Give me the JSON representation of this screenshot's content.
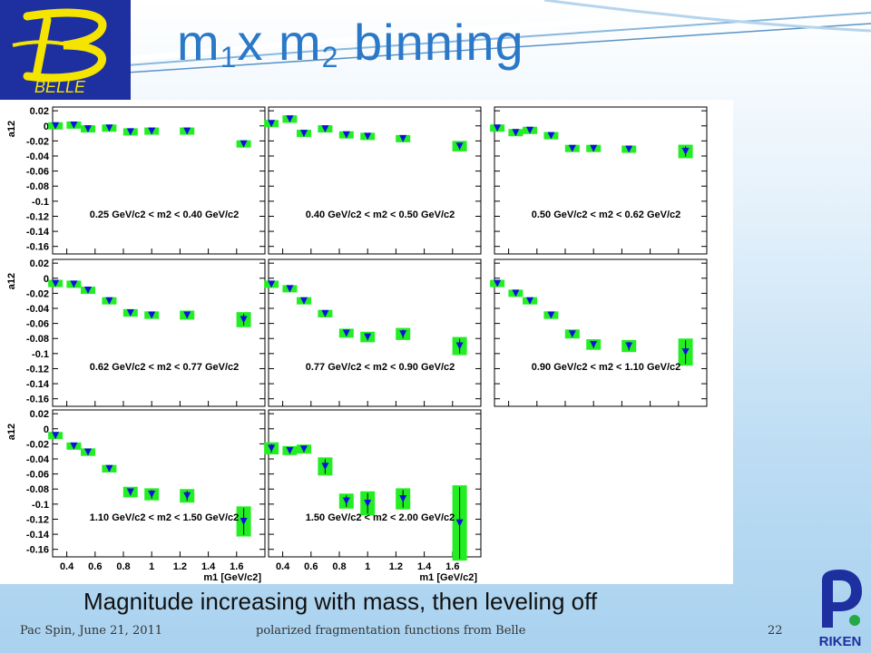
{
  "slide": {
    "title_main": "m",
    "title_sub1": "1",
    "title_mid": "x m",
    "title_sub2": "2",
    "title_end": " binning",
    "caption": "Magnitude increasing with mass, then leveling off",
    "footer_left": "Pac Spin, June 21, 2011",
    "footer_center": "polarized fragmentation functions from Belle",
    "footer_page": "22",
    "logo_text": "BELLE",
    "riken_text": "RIKEN",
    "accent_color": "#2a78c8"
  },
  "chart_data": {
    "type": "scatter",
    "ylabel": "a12",
    "xlabel": "m1 [GeV/c2]",
    "xlim": [
      0.3,
      1.8
    ],
    "ylim": [
      -0.17,
      0.025
    ],
    "y_ticks": [
      "0.02",
      "0",
      "-0.02",
      "-0.04",
      "-0.06",
      "-0.08",
      "-0.1",
      "-0.12",
      "-0.14",
      "-0.16"
    ],
    "x_ticks": [
      "0.4",
      "0.6",
      "0.8",
      "1",
      "1.2",
      "1.4",
      "1.6"
    ],
    "marker_color": "#1010dd",
    "band_color": "#22ee22",
    "panels": [
      {
        "label": "0.25 GeV/c2 < m2 < 0.40 GeV/c2",
        "points": [
          {
            "x": 0.32,
            "y": 0,
            "e": 0.003
          },
          {
            "x": 0.45,
            "y": 0.001,
            "e": 0.004
          },
          {
            "x": 0.55,
            "y": -0.004,
            "e": 0.003
          },
          {
            "x": 0.7,
            "y": -0.003,
            "e": 0.003
          },
          {
            "x": 0.85,
            "y": -0.008,
            "e": 0.003
          },
          {
            "x": 1.0,
            "y": -0.007,
            "e": 0.003
          },
          {
            "x": 1.25,
            "y": -0.007,
            "e": 0.003
          },
          {
            "x": 1.65,
            "y": -0.024,
            "e": 0.004
          }
        ]
      },
      {
        "label": "0.40 GeV/c2 < m2 < 0.50 GeV/c2",
        "points": [
          {
            "x": 0.32,
            "y": 0.003,
            "e": 0.004
          },
          {
            "x": 0.45,
            "y": 0.009,
            "e": 0.005
          },
          {
            "x": 0.55,
            "y": -0.01,
            "e": 0.004
          },
          {
            "x": 0.7,
            "y": -0.004,
            "e": 0.003
          },
          {
            "x": 0.85,
            "y": -0.012,
            "e": 0.003
          },
          {
            "x": 1.0,
            "y": -0.014,
            "e": 0.003
          },
          {
            "x": 1.25,
            "y": -0.017,
            "e": 0.003
          },
          {
            "x": 1.65,
            "y": -0.027,
            "e": 0.007
          }
        ]
      },
      {
        "label": "0.50 GeV/c2 < m2 < 0.62 GeV/c2",
        "points": [
          {
            "x": 0.32,
            "y": -0.003,
            "e": 0.003
          },
          {
            "x": 0.45,
            "y": -0.009,
            "e": 0.004
          },
          {
            "x": 0.55,
            "y": -0.006,
            "e": 0.003
          },
          {
            "x": 0.7,
            "y": -0.013,
            "e": 0.003
          },
          {
            "x": 0.85,
            "y": -0.03,
            "e": 0.004
          },
          {
            "x": 1.0,
            "y": -0.03,
            "e": 0.004
          },
          {
            "x": 1.25,
            "y": -0.031,
            "e": 0.004
          },
          {
            "x": 1.65,
            "y": -0.034,
            "e": 0.009
          }
        ]
      },
      {
        "label": "0.62 GeV/c2 < m2 < 0.77 GeV/c2",
        "points": [
          {
            "x": 0.32,
            "y": -0.007,
            "e": 0.003
          },
          {
            "x": 0.45,
            "y": -0.008,
            "e": 0.003
          },
          {
            "x": 0.55,
            "y": -0.016,
            "e": 0.003
          },
          {
            "x": 0.7,
            "y": -0.03,
            "e": 0.004
          },
          {
            "x": 0.85,
            "y": -0.046,
            "e": 0.005
          },
          {
            "x": 1.0,
            "y": -0.049,
            "e": 0.005
          },
          {
            "x": 1.25,
            "y": -0.049,
            "e": 0.006
          },
          {
            "x": 1.65,
            "y": -0.055,
            "e": 0.01
          }
        ]
      },
      {
        "label": "0.77 GeV/c2 < m2 < 0.90 GeV/c2",
        "points": [
          {
            "x": 0.32,
            "y": -0.008,
            "e": 0.004
          },
          {
            "x": 0.45,
            "y": -0.014,
            "e": 0.004
          },
          {
            "x": 0.55,
            "y": -0.03,
            "e": 0.004
          },
          {
            "x": 0.7,
            "y": -0.047,
            "e": 0.005
          },
          {
            "x": 0.85,
            "y": -0.073,
            "e": 0.006
          },
          {
            "x": 1.0,
            "y": -0.078,
            "e": 0.007
          },
          {
            "x": 1.25,
            "y": -0.074,
            "e": 0.008
          },
          {
            "x": 1.65,
            "y": -0.09,
            "e": 0.012
          }
        ]
      },
      {
        "label": "0.90 GeV/c2 < m2 < 1.10 GeV/c2",
        "points": [
          {
            "x": 0.32,
            "y": -0.007,
            "e": 0.004
          },
          {
            "x": 0.45,
            "y": -0.02,
            "e": 0.004
          },
          {
            "x": 0.55,
            "y": -0.03,
            "e": 0.004
          },
          {
            "x": 0.7,
            "y": -0.049,
            "e": 0.005
          },
          {
            "x": 0.85,
            "y": -0.074,
            "e": 0.006
          },
          {
            "x": 1.0,
            "y": -0.088,
            "e": 0.007
          },
          {
            "x": 1.25,
            "y": -0.09,
            "e": 0.008
          },
          {
            "x": 1.65,
            "y": -0.098,
            "e": 0.018
          }
        ]
      },
      {
        "label": "1.10 GeV/c2 < m2 < 1.50 GeV/c2",
        "points": [
          {
            "x": 0.32,
            "y": -0.009,
            "e": 0.004
          },
          {
            "x": 0.45,
            "y": -0.023,
            "e": 0.004
          },
          {
            "x": 0.55,
            "y": -0.031,
            "e": 0.005
          },
          {
            "x": 0.7,
            "y": -0.053,
            "e": 0.005
          },
          {
            "x": 0.85,
            "y": -0.084,
            "e": 0.007
          },
          {
            "x": 1.0,
            "y": -0.087,
            "e": 0.008
          },
          {
            "x": 1.25,
            "y": -0.089,
            "e": 0.009
          },
          {
            "x": 1.65,
            "y": -0.123,
            "e": 0.02
          }
        ]
      },
      {
        "label": "1.50 GeV/c2 < m2 < 2.00 GeV/c2",
        "points": [
          {
            "x": 0.32,
            "y": -0.026,
            "e": 0.008
          },
          {
            "x": 0.45,
            "y": -0.029,
            "e": 0.006
          },
          {
            "x": 0.55,
            "y": -0.027,
            "e": 0.006
          },
          {
            "x": 0.7,
            "y": -0.05,
            "e": 0.012
          },
          {
            "x": 0.85,
            "y": -0.096,
            "e": 0.01
          },
          {
            "x": 1.0,
            "y": -0.099,
            "e": 0.016
          },
          {
            "x": 1.25,
            "y": -0.093,
            "e": 0.014
          },
          {
            "x": 1.65,
            "y": -0.125,
            "e": 0.05
          }
        ]
      }
    ]
  }
}
